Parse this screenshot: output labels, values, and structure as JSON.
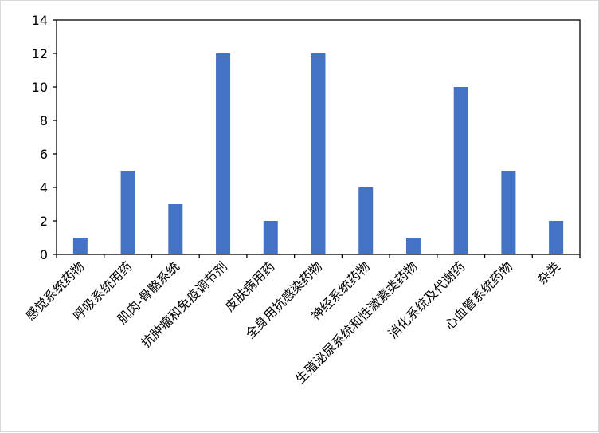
{
  "chart_data": {
    "type": "bar",
    "title": "",
    "xlabel": "",
    "ylabel": "",
    "categories": [
      "感觉系统药物",
      "呼吸系统用药",
      "肌肉-骨骼系统",
      "抗肿瘤和免疫调节剂",
      "皮肤病用药",
      "全身用抗感染药物",
      "神经系统药物",
      "生殖泌尿系统和性激素类药物",
      "消化系统及代谢药",
      "心血管系统药物",
      "杂类"
    ],
    "values": [
      1,
      5,
      3,
      12,
      2,
      12,
      4,
      1,
      10,
      5,
      2
    ],
    "ylim": [
      0,
      14
    ],
    "yticks": [
      0,
      2,
      4,
      6,
      8,
      10,
      12,
      14
    ],
    "grid": false,
    "legend": "none",
    "bar_color": "#4472C4"
  }
}
